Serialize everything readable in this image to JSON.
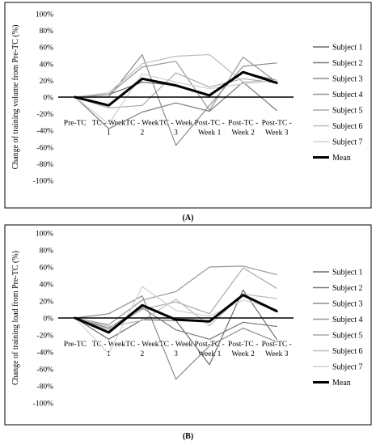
{
  "chart_data": [
    {
      "type": "line",
      "panel_label": "(A)",
      "ylabel": "Change of training volume from Pre-TC (%)",
      "ylim": [
        -100,
        100
      ],
      "yticks": [
        "100%",
        "80%",
        "60%",
        "40%",
        "20%",
        "0%",
        "-20%",
        "-40%",
        "-60%",
        "-80%",
        "-100%"
      ],
      "categories": [
        [
          "Pre-TC"
        ],
        [
          "TC - Week",
          "1"
        ],
        [
          "TC - Week",
          "2"
        ],
        [
          "TC - Week",
          "3"
        ],
        [
          "Post-TC -",
          "Week 1"
        ],
        [
          "Post-TC -",
          "Week 2"
        ],
        [
          "Post-TC -",
          "Week 3"
        ]
      ],
      "series": [
        {
          "name": "Subject 1",
          "color": "#6d6d6d",
          "width": 1.2,
          "values": [
            0,
            3,
            18,
            14,
            2,
            30,
            20
          ]
        },
        {
          "name": "Subject 2",
          "color": "#7a7a7a",
          "width": 1.2,
          "values": [
            0,
            -38,
            -18,
            -7,
            -17,
            18,
            -16
          ]
        },
        {
          "name": "Subject 3",
          "color": "#8c8c8c",
          "width": 1.2,
          "values": [
            0,
            0,
            51,
            -58,
            -10,
            37,
            41
          ]
        },
        {
          "name": "Subject 4",
          "color": "#969696",
          "width": 1.2,
          "values": [
            0,
            3,
            36,
            43,
            -16,
            48,
            18
          ]
        },
        {
          "name": "Subject 5",
          "color": "#aaaaaa",
          "width": 1.2,
          "values": [
            0,
            -13,
            -10,
            29,
            12,
            22,
            17
          ]
        },
        {
          "name": "Subject 6",
          "color": "#bcbcbc",
          "width": 1.2,
          "values": [
            0,
            5,
            40,
            49,
            51,
            18,
            19
          ]
        },
        {
          "name": "Subject 7",
          "color": "#cfcfcf",
          "width": 1.2,
          "values": [
            0,
            -32,
            28,
            18,
            10,
            16,
            20
          ]
        },
        {
          "name": "Mean",
          "color": "#000000",
          "width": 3,
          "values": [
            0,
            -10,
            22,
            14,
            2,
            30,
            17
          ]
        }
      ]
    },
    {
      "type": "line",
      "panel_label": "(B)",
      "ylabel": "Change of training load from Pre-TC (%)",
      "ylim": [
        -100,
        100
      ],
      "yticks": [
        "100%",
        "80%",
        "60%",
        "40%",
        "20%",
        "0%",
        "-20%",
        "-40%",
        "-60%",
        "-80%",
        "-100%"
      ],
      "categories": [
        [
          "Pre-TC"
        ],
        [
          "TC - Week",
          "1"
        ],
        [
          "TC - Week",
          "2"
        ],
        [
          "TC - Week",
          "3"
        ],
        [
          "Post-TC -",
          "Week 1"
        ],
        [
          "Post-TC -",
          "Week 2"
        ],
        [
          "Post-TC -",
          "Week 3"
        ]
      ],
      "series": [
        {
          "name": "Subject 1",
          "color": "#6d6d6d",
          "width": 1.2,
          "values": [
            0,
            -25,
            -2,
            -3,
            -55,
            33,
            -25
          ]
        },
        {
          "name": "Subject 2",
          "color": "#7a7a7a",
          "width": 1.2,
          "values": [
            0,
            -12,
            12,
            -14,
            -25,
            -5,
            -10
          ]
        },
        {
          "name": "Subject 3",
          "color": "#8c8c8c",
          "width": 1.2,
          "values": [
            0,
            5,
            26,
            -72,
            -33,
            -12,
            -28
          ]
        },
        {
          "name": "Subject 4",
          "color": "#969696",
          "width": 1.2,
          "values": [
            0,
            -8,
            21,
            31,
            60,
            61,
            51
          ]
        },
        {
          "name": "Subject 5",
          "color": "#aaaaaa",
          "width": 1.2,
          "values": [
            0,
            -14,
            10,
            19,
            5,
            59,
            35
          ]
        },
        {
          "name": "Subject 6",
          "color": "#bcbcbc",
          "width": 1.2,
          "values": [
            0,
            -10,
            -3,
            22,
            -9,
            28,
            23
          ]
        },
        {
          "name": "Subject 7",
          "color": "#cfcfcf",
          "width": 1.2,
          "values": [
            0,
            -42,
            37,
            9,
            2,
            21,
            10
          ]
        },
        {
          "name": "Mean",
          "color": "#000000",
          "width": 3,
          "values": [
            0,
            -17,
            15,
            -2,
            -4,
            27,
            8
          ]
        }
      ]
    }
  ]
}
